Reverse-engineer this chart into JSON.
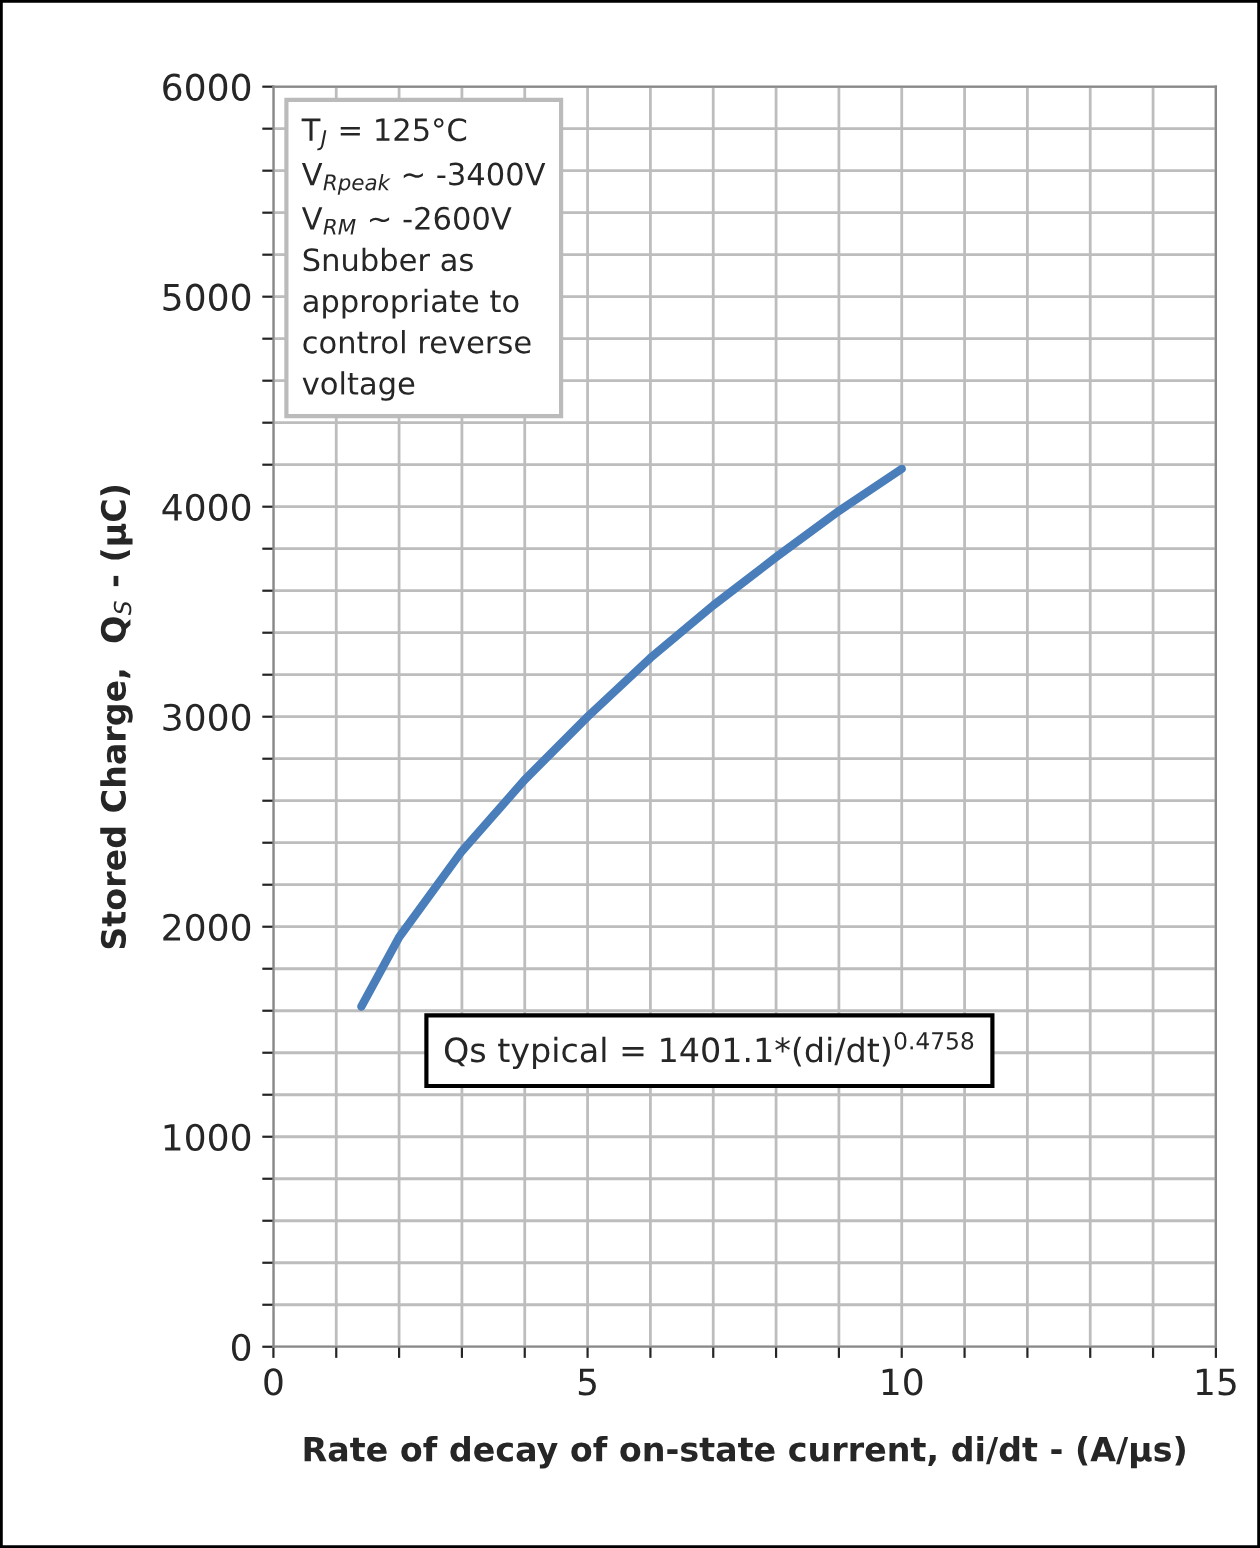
{
  "chart_data": {
    "type": "line",
    "xlabel": "Rate of decay of on-state current, di/dt - (A/µs)",
    "ylabel": "Stored Charge,  Q$_{S}$ - (µC)",
    "x": [
      1.4,
      2,
      3,
      4,
      5,
      6,
      7,
      8,
      9,
      10
    ],
    "series": [
      {
        "color": "#4a7ebb",
        "values": [
          1620,
          1950,
          2360,
          2700,
          3000,
          3280,
          3530,
          3760,
          3980,
          4180
        ]
      }
    ],
    "xlim": [
      0,
      15
    ],
    "xticks": [
      0,
      {
        "value": 1,
        "label": null
      },
      {
        "value": 2,
        "label": null
      },
      {
        "value": 3,
        "label": null
      },
      {
        "value": 4,
        "label": null
      },
      5,
      {
        "value": 6,
        "label": null
      },
      {
        "value": 7,
        "label": null
      },
      {
        "value": 8,
        "label": null
      },
      {
        "value": 9,
        "label": null
      },
      10,
      {
        "value": 11,
        "label": null
      },
      {
        "value": 12,
        "label": null
      },
      {
        "value": 13,
        "label": null
      },
      {
        "value": 14,
        "label": null
      },
      15
    ],
    "ylim": [
      0,
      6000
    ],
    "yticks": [
      0,
      {
        "value": 200,
        "label": null
      },
      {
        "value": 400,
        "label": null
      },
      {
        "value": 600,
        "label": null
      },
      {
        "value": 800,
        "label": null
      },
      1000,
      {
        "value": 1200,
        "label": null
      },
      {
        "value": 1400,
        "label": null
      },
      {
        "value": 1600,
        "label": null
      },
      {
        "value": 1800,
        "label": null
      },
      2000,
      {
        "value": 2200,
        "label": null
      },
      {
        "value": 2400,
        "label": null
      },
      {
        "value": 2600,
        "label": null
      },
      {
        "value": 2800,
        "label": null
      },
      3000,
      {
        "value": 3200,
        "label": null
      },
      {
        "value": 3400,
        "label": null
      },
      {
        "value": 3600,
        "label": null
      },
      {
        "value": 3800,
        "label": null
      },
      4000,
      {
        "value": 4200,
        "label": null
      },
      {
        "value": 4400,
        "label": null
      },
      {
        "value": 4600,
        "label": null
      },
      {
        "value": 4800,
        "label": null
      },
      5000,
      {
        "value": 5200,
        "label": null
      },
      {
        "value": 5400,
        "label": null
      },
      {
        "value": 5600,
        "label": null
      },
      {
        "value": 5800,
        "label": null
      },
      6000
    ],
    "grid": true,
    "annotations": [
      "T$_{J}$ = 125°C\nV$_{Rpeak}$ ~ -3400V\nV$_{RM}$ ~ -2600V\nSnubber as\nappropriate to\ncontrol reverse\nvoltage",
      "Qs typical = 1401.1*(di/dt)$^{0.4758}$"
    ]
  }
}
